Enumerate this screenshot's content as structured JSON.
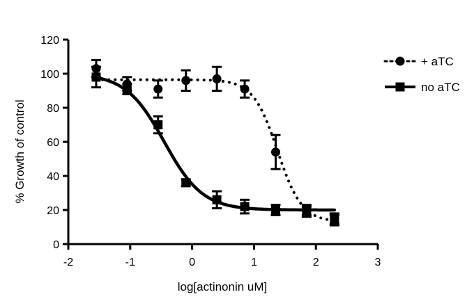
{
  "chart_data": {
    "type": "scatter",
    "title": "",
    "xlabel": "log[actinonin uM]",
    "ylabel": "% Growth of control",
    "xlim": [
      -2,
      3
    ],
    "ylim": [
      0,
      120
    ],
    "x_ticks": [
      "-2",
      "-1",
      "0",
      "1",
      "2",
      "3"
    ],
    "y_ticks": [
      "0",
      "20",
      "40",
      "60",
      "80",
      "100",
      "120"
    ],
    "grid": false,
    "legend_position": "top-right",
    "series": [
      {
        "name": "+ aTC",
        "marker": "circle",
        "line_style": "dotted",
        "color": "#000000",
        "x": [
          -1.55,
          -1.05,
          -0.55,
          -0.1,
          0.4,
          0.85,
          1.35,
          1.85,
          2.3
        ],
        "y": [
          103,
          94,
          91,
          96,
          97,
          91,
          54,
          19,
          15
        ],
        "error": [
          5,
          4,
          5,
          6,
          7,
          5,
          10,
          3,
          3
        ],
        "fit": {
          "top": 96.5,
          "bottom": 13,
          "log_ec50": 1.38,
          "hill": 2.2
        }
      },
      {
        "name": "no aTC",
        "marker": "square",
        "line_style": "solid",
        "color": "#000000",
        "x": [
          -1.55,
          -1.05,
          -0.55,
          -0.1,
          0.4,
          0.85,
          1.35,
          1.85,
          2.3
        ],
        "y": [
          98,
          91,
          70,
          36,
          26,
          22,
          20,
          20,
          14
        ],
        "error": [
          6,
          3,
          5,
          2,
          5,
          4,
          3,
          3,
          3
        ],
        "fit": {
          "top": 100,
          "bottom": 20,
          "log_ec50": -0.45,
          "hill": 1.4
        }
      }
    ]
  }
}
